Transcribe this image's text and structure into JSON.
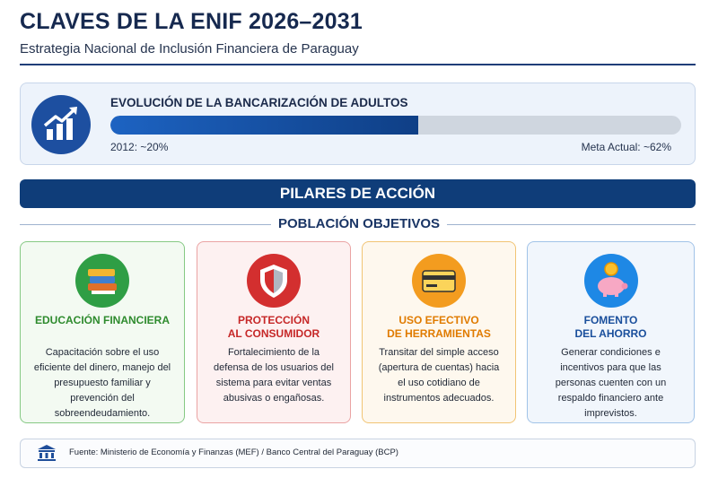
{
  "header": {
    "title": "CLAVES DE LA ENIF 2026–2031",
    "subtitle": "Estrategia Nacional de Inclusión Financiera de Paraguay"
  },
  "progress": {
    "title": "EVOLUCIÓN DE LA BANCARIZACIÓN DE ADULTOS",
    "start_label": "2012: ~20%",
    "end_label": "Meta Actual: ~62%"
  },
  "banner": "PILARES DE ACCIÓN",
  "section": "POBLACIÓN OBJETIVOS",
  "cards": [
    {
      "title_lines": [
        "EDUCACIÓN FINANCIERA"
      ],
      "text": "Capacitación sobre el uso eficiente del dinero, manejo del presupuesto familiar y prevención del sobreendeudamiento."
    },
    {
      "title_lines": [
        "PROTECCIÓN",
        "AL CONSUMIDOR"
      ],
      "text": "Fortalecimiento de la defensa de los usuarios del sistema para evitar ventas abusivas o engañosas."
    },
    {
      "title_lines": [
        "USO EFECTIVO",
        "DE HERRAMIENTAS"
      ],
      "text": "Transitar del simple acceso (apertura de cuentas) hacia el uso cotidiano de instrumentos adecuados."
    },
    {
      "title_lines": [
        "FOMENTO",
        "DEL AHORRO"
      ],
      "text": "Generar condiciones e incentivos para que las personas cuenten con un respaldo financiero ante imprevistos."
    }
  ],
  "footer": "Fuente: Ministerio de Economía y Finanzas (MEF) / Banco Central del Paraguay (BCP)"
}
